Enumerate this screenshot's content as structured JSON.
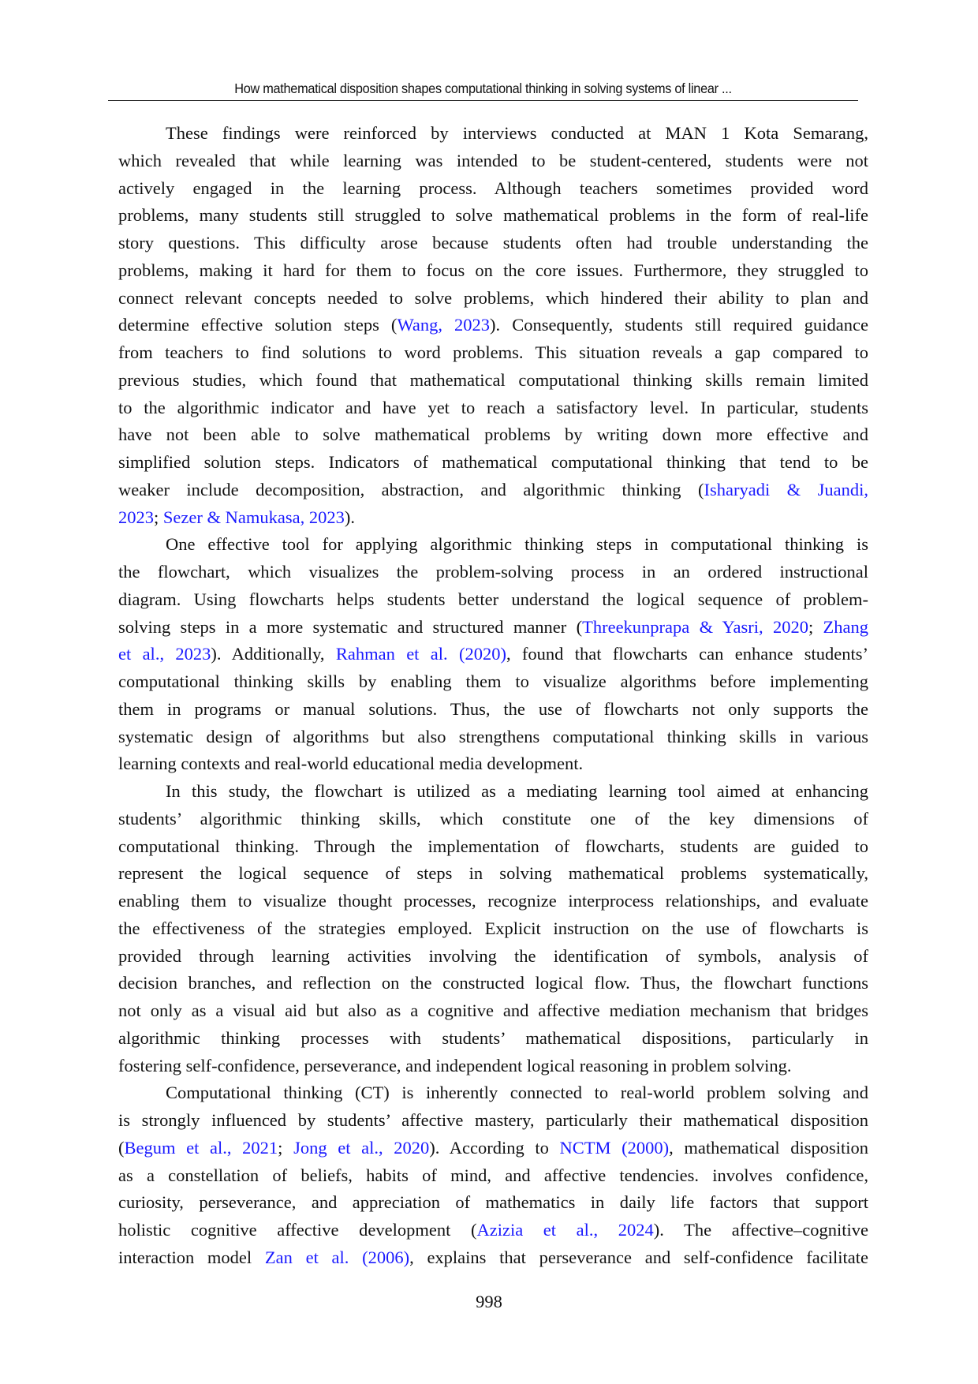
{
  "header": {
    "running_title": "How mathematical disposition shapes computational thinking in solving systems of linear ..."
  },
  "colors": {
    "link": "#1a1aff",
    "text": "#111111"
  },
  "paragraphs": [
    [
      [
        {
          "t": "These findings were reinforced by interviews conducted at MAN 1 Kota Semarang,"
        }
      ],
      [
        {
          "t": "which revealed that while learning was intended to be student-centered, students were not"
        }
      ],
      [
        {
          "t": "actively engaged in the learning process. Although teachers sometimes provided word"
        }
      ],
      [
        {
          "t": "problems, many students still struggled to solve mathematical problems in the form of real-life"
        }
      ],
      [
        {
          "t": "story questions. This difficulty arose because students often had trouble understanding the"
        }
      ],
      [
        {
          "t": "problems, making it hard for them to focus on the core issues. Furthermore, they struggled to"
        }
      ],
      [
        {
          "t": "connect relevant concepts needed to solve problems, which hindered their ability to plan and"
        }
      ],
      [
        {
          "t": "determine effective solution steps ("
        },
        {
          "t": "Wang, 2023",
          "link": true
        },
        {
          "t": "). Consequently, students still required guidance"
        }
      ],
      [
        {
          "t": "from teachers to find solutions to word problems. This situation reveals a gap compared to"
        }
      ],
      [
        {
          "t": "previous studies, which found that mathematical computational thinking skills remain limited"
        }
      ],
      [
        {
          "t": "to the algorithmic indicator and have yet to reach a satisfactory level. In particular, students"
        }
      ],
      [
        {
          "t": "have not been able to solve mathematical problems by writing down more effective and"
        }
      ],
      [
        {
          "t": "simplified solution steps. Indicators of mathematical computational thinking that tend to be"
        }
      ],
      [
        {
          "t": "weaker include decomposition, abstraction, and algorithmic thinking ("
        },
        {
          "t": "Isharyadi & Juandi,",
          "link": true
        }
      ],
      [
        {
          "t": "2023",
          "link": true
        },
        {
          "t": "; "
        },
        {
          "t": "Sezer & Namukasa, 2023",
          "link": true
        },
        {
          "t": ")."
        }
      ]
    ],
    [
      [
        {
          "t": "One effective tool for applying algorithmic thinking steps in computational thinking is"
        }
      ],
      [
        {
          "t": "the flowchart, which visualizes the problem-solving process in an ordered instructional"
        }
      ],
      [
        {
          "t": "diagram. Using flowcharts helps students better understand the logical sequence of problem-"
        }
      ],
      [
        {
          "t": "solving steps in a more systematic and structured manner ("
        },
        {
          "t": "Threekunprapa & Yasri, 2020",
          "link": true
        },
        {
          "t": "; "
        },
        {
          "t": "Zhang",
          "link": true
        }
      ],
      [
        {
          "t": "et al., 2023",
          "link": true
        },
        {
          "t": "). Additionally, "
        },
        {
          "t": "Rahman et al. (2020)",
          "link": true
        },
        {
          "t": ", found that flowcharts can enhance students’"
        }
      ],
      [
        {
          "t": "computational thinking skills by enabling them to visualize algorithms before implementing"
        }
      ],
      [
        {
          "t": "them in programs or manual solutions. Thus, the use of flowcharts not only supports the"
        }
      ],
      [
        {
          "t": "systematic design of algorithms but also strengthens computational thinking skills in various"
        }
      ],
      [
        {
          "t": "learning contexts and real-world educational media development."
        }
      ]
    ],
    [
      [
        {
          "t": "In this study, the flowchart is utilized as a mediating learning tool aimed at enhancing"
        }
      ],
      [
        {
          "t": "students’ algorithmic thinking skills, which constitute one of the key dimensions of"
        }
      ],
      [
        {
          "t": "computational thinking. Through the implementation of flowcharts, students are guided to"
        }
      ],
      [
        {
          "t": "represent the logical sequence of steps in solving mathematical problems systematically,"
        }
      ],
      [
        {
          "t": "enabling them to visualize thought processes, recognize interprocess relationships, and evaluate"
        }
      ],
      [
        {
          "t": "the effectiveness of the strategies employed. Explicit instruction on the use of flowcharts is"
        }
      ],
      [
        {
          "t": "provided through learning activities involving the identification of symbols, analysis of"
        }
      ],
      [
        {
          "t": "decision branches, and reflection on the constructed logical flow. Thus, the flowchart functions"
        }
      ],
      [
        {
          "t": "not only as a visual aid but also as a cognitive and affective mediation mechanism that bridges"
        }
      ],
      [
        {
          "t": "algorithmic thinking processes with students’ mathematical dispositions, particularly in"
        }
      ],
      [
        {
          "t": "fostering self-confidence, perseverance, and independent logical reasoning in problem solving."
        }
      ]
    ],
    [
      [
        {
          "t": "Computational thinking (CT) is inherently connected to real-world problem solving and"
        }
      ],
      [
        {
          "t": "is strongly influenced by students’ affective mastery, particularly their mathematical disposition"
        }
      ],
      [
        {
          "t": "("
        },
        {
          "t": "Begum et al., 2021",
          "link": true
        },
        {
          "t": "; "
        },
        {
          "t": "Jong et al., 2020",
          "link": true
        },
        {
          "t": "). According to "
        },
        {
          "t": "NCTM (2000)",
          "link": true
        },
        {
          "t": ", mathematical disposition"
        }
      ],
      [
        {
          "t": "as a constellation of beliefs, habits of mind, and affective tendencies. involves confidence,"
        }
      ],
      [
        {
          "t": "curiosity, perseverance, and appreciation of mathematics in daily life factors that support"
        }
      ],
      [
        {
          "t": "holistic cognitive affective development ("
        },
        {
          "t": "Azizia et al., 2024",
          "link": true
        },
        {
          "t": "). The affective–cognitive"
        }
      ],
      [
        {
          "t": "interaction model "
        },
        {
          "t": "Zan et al. (2006)",
          "link": true
        },
        {
          "t": ", explains that perseverance and self-confidence facilitate"
        }
      ]
    ]
  ],
  "footer": {
    "page_number": "998"
  }
}
